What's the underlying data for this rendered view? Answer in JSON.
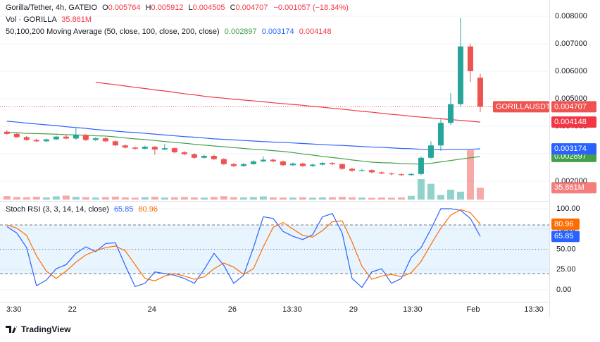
{
  "footer": {
    "brand": "TradingView"
  },
  "chart_data": [
    {
      "type": "candlestick",
      "title": "Gorilla/Tether, 4h, GATEIO",
      "ohlc_keys": [
        "O",
        "H",
        "L",
        "C"
      ],
      "change_label": "−0.001057 (−18.34%)",
      "symbol": "GORILLAUSDT",
      "colors": {
        "up": "#26a69a",
        "down": "#ef5350"
      },
      "ohlc": [
        [
          0.0038,
          0.00386,
          0.00368,
          0.00372
        ],
        [
          0.00372,
          0.00375,
          0.00358,
          0.0036
        ],
        [
          0.0036,
          0.00364,
          0.00347,
          0.0035
        ],
        [
          0.0035,
          0.00355,
          0.00341,
          0.00345
        ],
        [
          0.00345,
          0.00356,
          0.00342,
          0.00352
        ],
        [
          0.00352,
          0.00366,
          0.00349,
          0.00362
        ],
        [
          0.00362,
          0.00368,
          0.00352,
          0.00355
        ],
        [
          0.00355,
          0.00392,
          0.0035,
          0.00368
        ],
        [
          0.00368,
          0.00372,
          0.00346,
          0.0035
        ],
        [
          0.0035,
          0.0036,
          0.00346,
          0.00356
        ],
        [
          0.00356,
          0.0036,
          0.00341,
          0.00345
        ],
        [
          0.00345,
          0.00349,
          0.00327,
          0.0033
        ],
        [
          0.0033,
          0.00334,
          0.00319,
          0.00322
        ],
        [
          0.00322,
          0.00326,
          0.00314,
          0.00318
        ],
        [
          0.00318,
          0.00329,
          0.00315,
          0.00325
        ],
        [
          0.00325,
          0.00328,
          0.00296,
          0.00315
        ],
        [
          0.00315,
          0.00335,
          0.00312,
          0.0032
        ],
        [
          0.0032,
          0.00323,
          0.00301,
          0.00305
        ],
        [
          0.00305,
          0.00309,
          0.00294,
          0.00298
        ],
        [
          0.00298,
          0.00302,
          0.00281,
          0.00285
        ],
        [
          0.00285,
          0.00296,
          0.00282,
          0.00292
        ],
        [
          0.00292,
          0.00296,
          0.00276,
          0.0028
        ],
        [
          0.0028,
          0.00284,
          0.00258,
          0.00262
        ],
        [
          0.00262,
          0.00266,
          0.00251,
          0.00255
        ],
        [
          0.00255,
          0.00266,
          0.00252,
          0.00262
        ],
        [
          0.00262,
          0.00276,
          0.00259,
          0.00272
        ],
        [
          0.00272,
          0.0029,
          0.00269,
          0.00278
        ],
        [
          0.00278,
          0.00282,
          0.00268,
          0.00272
        ],
        [
          0.00272,
          0.00275,
          0.00254,
          0.00258
        ],
        [
          0.00258,
          0.00268,
          0.00255,
          0.00264
        ],
        [
          0.00264,
          0.00267,
          0.00251,
          0.00255
        ],
        [
          0.00255,
          0.00264,
          0.00252,
          0.0026
        ],
        [
          0.0026,
          0.0027,
          0.00257,
          0.00266
        ],
        [
          0.00266,
          0.00269,
          0.00258,
          0.00262
        ],
        [
          0.00262,
          0.00265,
          0.00241,
          0.00245
        ],
        [
          0.00245,
          0.00249,
          0.00234,
          0.00238
        ],
        [
          0.00238,
          0.00244,
          0.00235,
          0.0024
        ],
        [
          0.0024,
          0.00243,
          0.00229,
          0.00232
        ],
        [
          0.00232,
          0.00236,
          0.00225,
          0.00228
        ],
        [
          0.00228,
          0.00232,
          0.00221,
          0.00225
        ],
        [
          0.00225,
          0.00229,
          0.00218,
          0.00222
        ],
        [
          0.00222,
          0.0023,
          0.00219,
          0.00226
        ],
        [
          0.00226,
          0.0029,
          0.00222,
          0.00285
        ],
        [
          0.00285,
          0.00345,
          0.0028,
          0.0033
        ],
        [
          0.0033,
          0.00425,
          0.0031,
          0.00412
        ],
        [
          0.00412,
          0.0052,
          0.00405,
          0.0048
        ],
        [
          0.0048,
          0.00794,
          0.0047,
          0.0069
        ],
        [
          0.0069,
          0.007,
          0.0056,
          0.006
        ],
        [
          0.005764,
          0.005912,
          0.004505,
          0.004707
        ]
      ],
      "volume": {
        "name": "Vol · GORILLA",
        "value_label": "35.861M",
        "values": [
          10500000,
          7800000,
          7000000,
          8700000,
          6500000,
          9700000,
          12000000,
          8200000,
          7200000,
          6000000,
          7500000,
          9000000,
          6700000,
          5500000,
          7200000,
          8500000,
          6200000,
          7000000,
          7700000,
          6500000,
          5700000,
          8000000,
          10200000,
          7200000,
          6500000,
          7500000,
          9500000,
          6700000,
          6200000,
          6000000,
          7000000,
          5500000,
          6500000,
          7200000,
          8200000,
          6700000,
          6000000,
          5200000,
          6200000,
          5700000,
          6500000,
          11200000,
          62000000,
          48000000,
          14000000,
          30000000,
          24000000,
          150000000,
          35861000
        ]
      },
      "ma_title": "50,100,200 Moving Average (50, close, 100, close, 200, close)",
      "series": [
        {
          "color": "#43a047",
          "values": [
            0.00377,
            0.00376,
            0.00374,
            0.00373,
            0.00372,
            0.00371,
            0.00369,
            0.00368,
            0.00367,
            0.00365,
            0.00364,
            0.00361,
            0.00357,
            0.00354,
            0.00351,
            0.00348,
            0.00344,
            0.00341,
            0.00338,
            0.00334,
            0.00331,
            0.00328,
            0.00325,
            0.00322,
            0.00319,
            0.00316,
            0.00314,
            0.00311,
            0.00308,
            0.00304,
            0.00299,
            0.00295,
            0.0029,
            0.00286,
            0.00282,
            0.00277,
            0.00273,
            0.00269,
            0.00267,
            0.00266,
            0.00264,
            0.00263,
            0.00262,
            0.00265,
            0.0027,
            0.00275,
            0.0028,
            0.00285,
            0.002897
          ]
        },
        {
          "color": "#2962ff",
          "values": [
            0.00418,
            0.00415,
            0.00411,
            0.00408,
            0.00405,
            0.00402,
            0.00398,
            0.00395,
            0.00392,
            0.00388,
            0.00385,
            0.00382,
            0.00379,
            0.00377,
            0.00374,
            0.00371,
            0.00368,
            0.00365,
            0.00362,
            0.0036,
            0.00357,
            0.00354,
            0.00352,
            0.0035,
            0.00348,
            0.00346,
            0.00344,
            0.00342,
            0.00341,
            0.00339,
            0.00337,
            0.00335,
            0.00333,
            0.00331,
            0.0033,
            0.00328,
            0.00326,
            0.00324,
            0.00323,
            0.00321,
            0.00319,
            0.00318,
            0.00316,
            0.00315,
            0.00315,
            0.00315,
            0.00315,
            0.00316,
            0.003174
          ]
        },
        {
          "color": "#f23645",
          "values": [
            null,
            null,
            null,
            null,
            null,
            null,
            null,
            null,
            null,
            0.0056,
            0.00555,
            0.00551,
            0.00546,
            0.00541,
            0.00537,
            0.00532,
            0.00528,
            0.00523,
            0.00518,
            0.00514,
            0.00509,
            0.00505,
            0.00502,
            0.00498,
            0.00495,
            0.00492,
            0.00489,
            0.00485,
            0.00482,
            0.00479,
            0.00476,
            0.00472,
            0.00469,
            0.00465,
            0.00462,
            0.00458,
            0.00454,
            0.00451,
            0.00447,
            0.00443,
            0.0044,
            0.00436,
            0.00433,
            0.0043,
            0.00427,
            0.00424,
            0.00421,
            0.00418,
            0.004148
          ]
        }
      ],
      "ylim": [
        0.00133,
        0.00859
      ],
      "yticks": [
        {
          "value": 0.002,
          "label": "0.002000"
        },
        {
          "value": 0.003,
          "label": "0.003000"
        },
        {
          "value": 0.004,
          "label": "0.004000"
        },
        {
          "value": 0.005,
          "label": "0.005000"
        },
        {
          "value": 0.006,
          "label": "0.006000"
        },
        {
          "value": 0.007,
          "label": "0.007000"
        },
        {
          "value": 0.008,
          "label": "0.008000"
        }
      ],
      "xlim": [
        -0.7,
        55
      ],
      "xticks": [
        {
          "value": 0.71,
          "label": "3:30"
        },
        {
          "value": 6.64,
          "label": "22"
        },
        {
          "value": 14.71,
          "label": "24"
        },
        {
          "value": 22.86,
          "label": "26"
        },
        {
          "value": 28.93,
          "label": "13:30"
        },
        {
          "value": 35.14,
          "label": "29"
        },
        {
          "value": 41.14,
          "label": "13:30"
        },
        {
          "value": 47.29,
          "label": "Feb"
        },
        {
          "value": 53.43,
          "label": "13:30"
        }
      ],
      "grid": true
    },
    {
      "type": "line",
      "title": "Stoch RSI (3, 3, 14, 14, close)",
      "series": [
        {
          "color": "#2962ff",
          "values": [
            78,
            70,
            52,
            5,
            12,
            26,
            31,
            45,
            53,
            47,
            57,
            58,
            30,
            4,
            8,
            22,
            20,
            18,
            14,
            8,
            25,
            45,
            30,
            8,
            18,
            52,
            90,
            88,
            72,
            66,
            62,
            68,
            90,
            94,
            70,
            14,
            3,
            22,
            26,
            8,
            14,
            40,
            52,
            75,
            100,
            100,
            98,
            88,
            65.85
          ]
        },
        {
          "color": "#ff6d00",
          "values": [
            80,
            76,
            67,
            42,
            23,
            14,
            23,
            34,
            43,
            48,
            52,
            54,
            48,
            31,
            14,
            11,
            17,
            20,
            17,
            13,
            16,
            26,
            33,
            28,
            19,
            26,
            53,
            77,
            83,
            75,
            67,
            65,
            73,
            84,
            85,
            59,
            29,
            13,
            17,
            19,
            16,
            21,
            35,
            56,
            76,
            92,
            99,
            95,
            80.96
          ]
        }
      ],
      "levels": [
        80,
        50,
        20
      ],
      "ylim": [
        -14.8,
        107.8
      ],
      "yticks": [
        {
          "value": 0,
          "label": "0.00"
        },
        {
          "value": 25,
          "label": "25.00"
        },
        {
          "value": 50,
          "label": "50.00"
        },
        {
          "value": 75,
          "label": "75.00"
        },
        {
          "value": 100,
          "label": "100.00"
        }
      ]
    }
  ]
}
